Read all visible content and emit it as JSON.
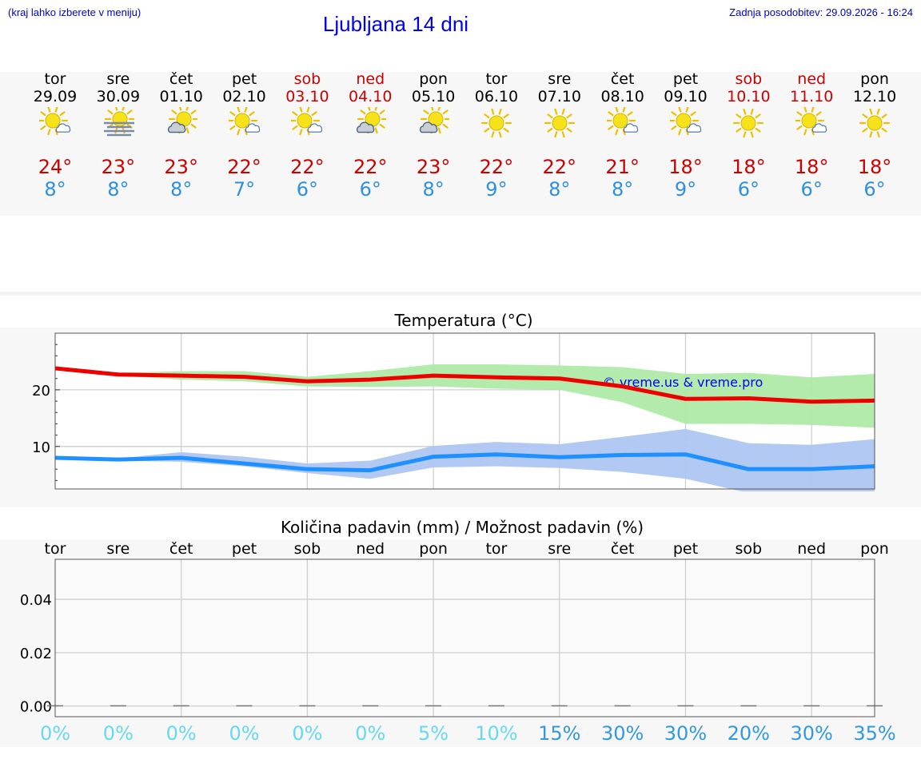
{
  "header": {
    "hint": "(kraj lahko izberete v meniju)",
    "title": "Ljubljana 14 dni",
    "updated": "Zadnja posodobitev: 29.09.2026 - 16:24"
  },
  "days": [
    {
      "name": "tor",
      "date": "29.09",
      "weekend": false,
      "icon": "sun-cloud-icon",
      "tmax": "24°",
      "tmin": "8°"
    },
    {
      "name": "sre",
      "date": "30.09",
      "weekend": false,
      "icon": "sun-fog-icon",
      "tmax": "23°",
      "tmin": "8°"
    },
    {
      "name": "čet",
      "date": "01.10",
      "weekend": false,
      "icon": "sun-cloudy-icon",
      "tmax": "23°",
      "tmin": "8°"
    },
    {
      "name": "pet",
      "date": "02.10",
      "weekend": false,
      "icon": "sun-cloud-icon",
      "tmax": "22°",
      "tmin": "7°"
    },
    {
      "name": "sob",
      "date": "03.10",
      "weekend": true,
      "icon": "sun-cloud-icon",
      "tmax": "22°",
      "tmin": "6°"
    },
    {
      "name": "ned",
      "date": "04.10",
      "weekend": true,
      "icon": "sun-cloudy-icon",
      "tmax": "22°",
      "tmin": "6°"
    },
    {
      "name": "pon",
      "date": "05.10",
      "weekend": false,
      "icon": "sun-cloudy-icon",
      "tmax": "23°",
      "tmin": "8°"
    },
    {
      "name": "tor",
      "date": "06.10",
      "weekend": false,
      "icon": "sun-icon",
      "tmax": "22°",
      "tmin": "9°"
    },
    {
      "name": "sre",
      "date": "07.10",
      "weekend": false,
      "icon": "sun-icon",
      "tmax": "22°",
      "tmin": "8°"
    },
    {
      "name": "čet",
      "date": "08.10",
      "weekend": false,
      "icon": "sun-cloud-icon",
      "tmax": "21°",
      "tmin": "8°"
    },
    {
      "name": "pet",
      "date": "09.10",
      "weekend": false,
      "icon": "sun-cloud-icon",
      "tmax": "18°",
      "tmin": "9°"
    },
    {
      "name": "sob",
      "date": "10.10",
      "weekend": true,
      "icon": "sun-icon",
      "tmax": "18°",
      "tmin": "6°"
    },
    {
      "name": "ned",
      "date": "11.10",
      "weekend": true,
      "icon": "sun-cloud-icon",
      "tmax": "18°",
      "tmin": "6°"
    },
    {
      "name": "pon",
      "date": "12.10",
      "weekend": false,
      "icon": "sun-icon",
      "tmax": "18°",
      "tmin": "6°"
    }
  ],
  "colors": {
    "max_line": "#ee0000",
    "max_band": "#aeeaa8",
    "min_line": "#1e90ff",
    "min_band": "#aec6f2",
    "precip_low": "#66d8f0",
    "precip_high": "#3399dd"
  },
  "chart_data": [
    {
      "type": "line",
      "title": "Temperatura (°C)",
      "watermark": "© vreme.us & vreme.pro",
      "x_days": [
        "29.09",
        "30.09",
        "01.10",
        "02.10",
        "03.10",
        "04.10",
        "05.10",
        "06.10",
        "07.10",
        "08.10",
        "09.10",
        "10.10",
        "11.10",
        "12.10"
      ],
      "ylim": [
        2.5,
        30
      ],
      "yticks": [
        10,
        20
      ],
      "grid": true,
      "series": [
        {
          "values": [
            23.8,
            22.7,
            22.5,
            22.3,
            21.5,
            21.8,
            22.5,
            22.2,
            22.0,
            20.6,
            18.4,
            18.5,
            17.9,
            18.1
          ],
          "band_low": [
            23.8,
            22.5,
            21.8,
            21.5,
            20.6,
            20.5,
            20.6,
            20.2,
            20.0,
            17.8,
            14.0,
            14.0,
            13.8,
            13.3
          ],
          "band_high": [
            23.8,
            23.0,
            23.3,
            23.3,
            22.3,
            23.3,
            24.5,
            24.5,
            24.3,
            24.0,
            22.8,
            23.0,
            22.2,
            22.8
          ]
        },
        {
          "values": [
            8.0,
            7.7,
            8.0,
            7.0,
            6.0,
            5.8,
            8.2,
            8.6,
            8.1,
            8.5,
            8.6,
            6.0,
            6.0,
            6.5
          ],
          "band_low": [
            8.0,
            7.5,
            7.3,
            6.5,
            5.3,
            4.3,
            6.3,
            6.5,
            6.2,
            5.5,
            4.3,
            1.8,
            2.0,
            1.9
          ],
          "band_high": [
            8.0,
            7.9,
            9.0,
            8.2,
            7.0,
            7.5,
            10.1,
            10.8,
            10.4,
            11.7,
            13.1,
            10.6,
            10.3,
            11.3
          ]
        }
      ]
    },
    {
      "type": "bar",
      "title": "Količina padavin (mm) / Možnost padavin (%)",
      "categories": [
        "tor",
        "sre",
        "čet",
        "pet",
        "sob",
        "ned",
        "pon",
        "tor",
        "sre",
        "čet",
        "pet",
        "sob",
        "ned",
        "pon"
      ],
      "values": [
        0,
        0,
        0,
        0,
        0,
        0,
        0,
        0,
        0,
        0,
        0,
        0,
        0,
        0
      ],
      "ylim": [
        -0.004,
        0.055
      ],
      "yticks": [
        0.0,
        0.02,
        0.04
      ],
      "ytick_labels": [
        "0.00",
        "0.02",
        "0.04"
      ],
      "probabilities": [
        "0%",
        "0%",
        "0%",
        "0%",
        "0%",
        "0%",
        "5%",
        "10%",
        "15%",
        "30%",
        "30%",
        "20%",
        "30%",
        "35%"
      ],
      "probability_values": [
        0,
        0,
        0,
        0,
        0,
        0,
        5,
        10,
        15,
        30,
        30,
        20,
        30,
        35
      ]
    }
  ]
}
